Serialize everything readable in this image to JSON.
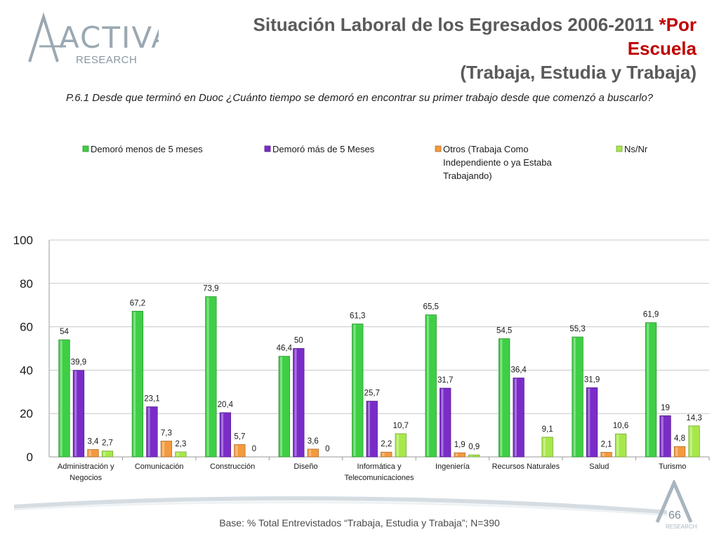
{
  "header": {
    "title_line1_dark": "Situación Laboral de los Egresados 2006-2011 ",
    "title_line1_red": "*Por",
    "title_line2_red": "Escuela",
    "title_line3": "(Trabaja, Estudia y Trabaja)",
    "logo_word": "ACTIVA",
    "logo_sub": "RESEARCH",
    "corner_logo_sub": "RESEARCH"
  },
  "question": "P.6.1 Desde que terminó en Duoc ¿Cuánto tiempo se demoró en encontrar su primer trabajo desde que comenzó a buscarlo?",
  "footer": {
    "base_note": "Base: % Total Entrevistados “Trabaja, Estudia y Trabaja”; N=390",
    "page_number": "66"
  },
  "chart_data": {
    "type": "bar",
    "title": "",
    "xlabel": "",
    "ylabel": "",
    "ylim": [
      0,
      100
    ],
    "yticks": [
      0,
      20,
      40,
      60,
      80,
      100
    ],
    "grid": true,
    "legend_position": "top",
    "categories": [
      [
        "Administración y",
        "Negocios"
      ],
      [
        "Comunicación"
      ],
      [
        "Construcción"
      ],
      [
        "Diseño"
      ],
      [
        "Informática y",
        "Telecomunicaciones"
      ],
      [
        "Ingeniería"
      ],
      [
        "Recursos Naturales"
      ],
      [
        "Salud"
      ],
      [
        "Turismo"
      ]
    ],
    "series": [
      {
        "name": [
          "Demoró menos de 5 meses"
        ],
        "color": "#3ecf45",
        "values": [
          54,
          67.2,
          73.9,
          46.4,
          61.3,
          65.5,
          54.5,
          55.3,
          61.9
        ],
        "labels": [
          "54",
          "67,2",
          "73,9",
          "46,4",
          "61,3",
          "65,5",
          "54,5",
          "55,3",
          "61,9"
        ]
      },
      {
        "name": [
          "Demoró más de 5 Meses"
        ],
        "color": "#7a2cc8",
        "values": [
          39.9,
          23.1,
          20.4,
          50,
          25.7,
          31.7,
          36.4,
          31.9,
          19
        ],
        "labels": [
          "39,9",
          "23,1",
          "20,4",
          "50",
          "25,7",
          "31,7",
          "36,4",
          "31,9",
          "19"
        ]
      },
      {
        "name": [
          "Otros (Trabaja Como",
          "Independiente o ya Estaba",
          "Trabajando)"
        ],
        "color": "#f49a3e",
        "values": [
          3.4,
          7.3,
          5.7,
          3.6,
          2.2,
          1.9,
          null,
          2.1,
          4.8
        ],
        "labels": [
          "3,4",
          "7,3",
          "5,7",
          "3,6",
          "2,2",
          "1,9",
          null,
          "2,1",
          "4,8"
        ]
      },
      {
        "name": [
          "Ns/Nr"
        ],
        "color": "#a6e84a",
        "values": [
          2.7,
          2.3,
          0,
          0,
          10.7,
          0.9,
          9.1,
          10.6,
          14.3
        ],
        "labels": [
          "2,7",
          "2,3",
          "0",
          "0",
          "10,7",
          "0,9",
          "9,1",
          "10,6",
          "14,3"
        ]
      }
    ]
  }
}
